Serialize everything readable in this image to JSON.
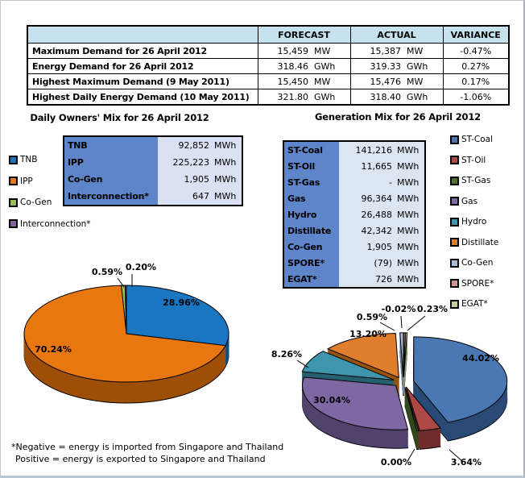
{
  "summary_table": {
    "headers": {
      "forecast": "FORECAST",
      "actual": "ACTUAL",
      "variance": "VARIANCE"
    },
    "rows": [
      {
        "label": "Maximum Demand for 26 April 2012",
        "forecast_value": "15,459",
        "forecast_unit": "MW",
        "actual_value": "15,387",
        "actual_unit": "MW",
        "variance": "-0.47%"
      },
      {
        "label": "Energy Demand for 26 April 2012",
        "forecast_value": "318.46",
        "forecast_unit": "GWh",
        "actual_value": "319.33",
        "actual_unit": "GWh",
        "variance": "0.27%"
      },
      {
        "label": "Highest Maximum Demand (9 May 2011)",
        "forecast_value": "15,450",
        "forecast_unit": "MW",
        "actual_value": "15,476",
        "actual_unit": "MW",
        "variance": "0.17%"
      },
      {
        "label": "Highest Daily Energy Demand (10 May 2011)",
        "forecast_value": "321.80",
        "forecast_unit": "GWh",
        "actual_value": "318.40",
        "actual_unit": "GWh",
        "variance": "-1.06%"
      }
    ]
  },
  "owners": {
    "data_table": {
      "rows": [
        {
          "label": "TNB",
          "value": "92,852",
          "unit": "MWh"
        },
        {
          "label": "IPP",
          "value": "225,223",
          "unit": "MWh"
        },
        {
          "label": "Co-Gen",
          "value": "1,905",
          "unit": "MWh"
        },
        {
          "label": "Interconnection*",
          "value": "647",
          "unit": "MWh"
        }
      ]
    }
  },
  "generation": {
    "data_table": {
      "rows": [
        {
          "label": "ST-Coal",
          "value": "141,216",
          "unit": "MWh"
        },
        {
          "label": "ST-Oil",
          "value": "11,665",
          "unit": "MWh"
        },
        {
          "label": "ST-Gas",
          "value": "-",
          "unit": "MWh"
        },
        {
          "label": "Gas",
          "value": "96,364",
          "unit": "MWh"
        },
        {
          "label": "Hydro",
          "value": "26,488",
          "unit": "MWh"
        },
        {
          "label": "Distillate",
          "value": "42,342",
          "unit": "MWh"
        },
        {
          "label": "Co-Gen",
          "value": "1,905",
          "unit": "MWh"
        },
        {
          "label": "SPORE*",
          "value": "(79)",
          "unit": "MWh"
        },
        {
          "label": "EGAT*",
          "value": "726",
          "unit": "MWh"
        }
      ]
    }
  },
  "footnote": {
    "line1": "*Negative = energy is imported from Singapore and Thailand",
    "line2": "Positive = energy is exported to Singapore and Thailand"
  },
  "colors": {
    "summary_header_bg": "#c6e2ee",
    "data_table_label_bg": "#5e84c9",
    "data_table_value_bg": "#d9e1f2",
    "table_border": "#000000"
  },
  "chart_data": [
    {
      "id": "owners",
      "type": "pie",
      "title": "Daily Owners' Mix for 26 April 2012",
      "unit": "MWh",
      "legend_position": "left",
      "start_angle_deg": 0,
      "slices": [
        {
          "name": "TNB",
          "value": 92852,
          "pct": 28.96,
          "pct_label": "28.96%",
          "color": "#1b76c2",
          "wall": "#0d4f85",
          "label": [
            204,
            68
          ]
        },
        {
          "name": "IPP",
          "value": 225223,
          "pct": 70.24,
          "pct_label": "70.24%",
          "color": "#e97710",
          "wall": "#9e5007",
          "label": [
            45,
            126
          ]
        },
        {
          "name": "Co-Gen",
          "value": 1905,
          "pct": 0.59,
          "pct_label": "0.59%",
          "color": "#9bbb59",
          "wall": "#6a8138",
          "label": [
            112,
            30
          ],
          "leader": [
            [
              125,
              34
            ],
            [
              133,
              45
            ]
          ]
        },
        {
          "name": "Interconnection*",
          "value": 647,
          "pct": 0.2,
          "pct_label": "0.20%",
          "color": "#8064a2",
          "wall": "#594472",
          "label": [
            154,
            24
          ],
          "leader": [
            [
              143,
              29
            ],
            [
              143,
              45
            ]
          ]
        }
      ]
    },
    {
      "id": "generation",
      "type": "pie",
      "title": "Generation Mix for 26 April 2012",
      "unit": "MWh",
      "legend_position": "right",
      "start_angle_deg": 0,
      "slices": [
        {
          "name": "ST-Coal",
          "value": 141216,
          "pct": 44.02,
          "pct_label": "44.02%",
          "color": "#4b78b2",
          "wall": "#2b4b77",
          "label": [
            266,
            82
          ]
        },
        {
          "name": "ST-Oil",
          "value": 11665,
          "pct": 3.64,
          "pct_label": "3.64%",
          "color": "#ae4846",
          "wall": "#712d2c",
          "label": [
            248,
            211
          ],
          "leader": [
            [
              243,
              206
            ],
            [
              227,
              192
            ]
          ]
        },
        {
          "name": "ST-Gas",
          "value": 0,
          "pct": 0.0,
          "pct_label": "0.00%",
          "color": "#4e6f2d",
          "wall": "#334a1e",
          "label": [
            161,
            211
          ],
          "leader": [
            [
              175,
              206
            ],
            [
              184,
              191
            ]
          ]
        },
        {
          "name": "Gas",
          "value": 96364,
          "pct": 30.04,
          "pct_label": "30.04%",
          "color": "#7e68a3",
          "wall": "#52436c",
          "label": [
            81,
            134
          ]
        },
        {
          "name": "Hydro",
          "value": 26488,
          "pct": 8.26,
          "pct_label": "8.26%",
          "color": "#3f95ab",
          "wall": "#27616f",
          "label": [
            25,
            77
          ],
          "leader": [
            [
              38,
              81
            ],
            [
              52,
              90
            ]
          ]
        },
        {
          "name": "Distillate",
          "value": 42342,
          "pct": 13.2,
          "pct_label": "13.20%",
          "color": "#df7e2c",
          "wall": "#97540e",
          "label": [
            126,
            52
          ]
        },
        {
          "name": "Co-Gen",
          "value": 1905,
          "pct": 0.59,
          "pct_label": "0.59%",
          "color": "#a8bddb",
          "wall": "#6f82a3",
          "label": [
            131,
            31
          ],
          "leader": [
            [
              141,
              34
            ],
            [
              159,
              44
            ]
          ]
        },
        {
          "name": "SPORE*",
          "value": -79,
          "pct": -0.02,
          "pct_label": "-0.02%",
          "color": "#d09392",
          "wall": "#96605f",
          "label": [
            164,
            21
          ],
          "leader": [
            [
              167,
              26
            ],
            [
              168,
              41
            ]
          ]
        },
        {
          "name": "EGAT*",
          "value": 726,
          "pct": 0.23,
          "pct_label": "0.23%",
          "color": "#c0cf9b",
          "wall": "#879a5f",
          "label": [
            206,
            21
          ],
          "leader": [
            [
              197,
              26
            ],
            [
              175,
              44
            ]
          ]
        }
      ]
    }
  ]
}
